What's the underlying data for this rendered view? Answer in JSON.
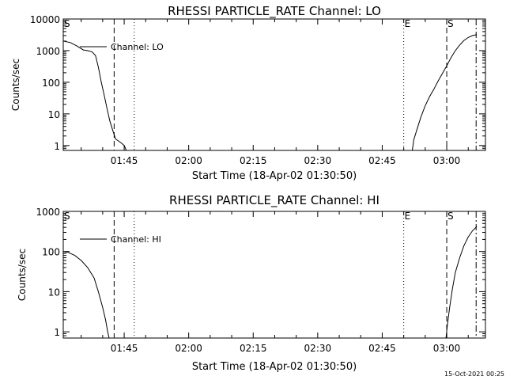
{
  "footer": {
    "timestamp": "15-Oct-2021 00:25"
  },
  "chart_data": [
    {
      "type": "line",
      "title": "RHESSI PARTICLE_RATE Channel: LO",
      "xlabel": "Start Time (18-Apr-02 01:30:50)",
      "ylabel": "Counts/sec",
      "yscale": "log",
      "xlim": [
        "01:30:50",
        "03:09:00"
      ],
      "ylim": [
        0.7,
        10000
      ],
      "x_ticks": [
        "01:45",
        "02:00",
        "02:15",
        "02:30",
        "02:45",
        "03:00"
      ],
      "y_ticks": [
        "1",
        "10",
        "100",
        "1000",
        "10000"
      ],
      "legend": {
        "position": "top-left"
      },
      "series": [
        {
          "name": "Channel: LO",
          "segments": [
            [
              [
                "01:30:50",
                2000
              ],
              [
                "01:32:30",
                1800
              ],
              [
                "01:34:00",
                1400
              ],
              [
                "01:35:30",
                1050
              ],
              [
                "01:36:30",
                1000
              ],
              [
                "01:37:30",
                920
              ],
              [
                "01:38:20",
                700
              ],
              [
                "01:39:00",
                300
              ],
              [
                "01:39:40",
                100
              ],
              [
                "01:40:20",
                40
              ],
              [
                "01:41:00",
                15
              ],
              [
                "01:41:40",
                6
              ],
              [
                "01:42:20",
                3
              ],
              [
                "01:43:00",
                1.6
              ],
              [
                "01:43:40",
                1.4
              ],
              [
                "01:44:20",
                1.2
              ],
              [
                "01:45:00",
                1.0
              ],
              [
                "01:45:30",
                0.7
              ]
            ],
            [
              [
                "02:52:00",
                0.7
              ],
              [
                "02:52:20",
                1.5
              ],
              [
                "02:53:00",
                3
              ],
              [
                "02:54:00",
                8
              ],
              [
                "02:55:00",
                18
              ],
              [
                "02:56:00",
                35
              ],
              [
                "02:57:00",
                60
              ],
              [
                "02:58:00",
                110
              ],
              [
                "02:59:00",
                190
              ],
              [
                "03:00:00",
                330
              ],
              [
                "03:01:00",
                600
              ],
              [
                "03:02:00",
                1000
              ],
              [
                "03:03:00",
                1500
              ],
              [
                "03:04:00",
                2100
              ],
              [
                "03:05:00",
                2600
              ],
              [
                "03:06:00",
                3000
              ],
              [
                "03:07:00",
                3200
              ]
            ]
          ]
        }
      ],
      "markers": [
        {
          "label": "S",
          "time": "01:30:50",
          "style": "dash-dot"
        },
        {
          "label": "",
          "time": "01:42:40",
          "style": "dashed"
        },
        {
          "label": "",
          "time": "01:47:20",
          "style": "dotted"
        },
        {
          "label": "E",
          "time": "02:50:00",
          "style": "dotted"
        },
        {
          "label": "S",
          "time": "03:00:00",
          "style": "dashed"
        },
        {
          "label": "",
          "time": "03:06:50",
          "style": "dash-dot"
        }
      ]
    },
    {
      "type": "line",
      "title": "RHESSI PARTICLE_RATE Channel: HI",
      "xlabel": "Start Time (18-Apr-02 01:30:50)",
      "ylabel": "Counts/sec",
      "yscale": "log",
      "xlim": [
        "01:30:50",
        "03:09:00"
      ],
      "ylim": [
        0.7,
        1000
      ],
      "x_ticks": [
        "01:45",
        "02:00",
        "02:15",
        "02:30",
        "02:45",
        "03:00"
      ],
      "y_ticks": [
        "1",
        "10",
        "100",
        "1000"
      ],
      "legend": {
        "position": "top-left"
      },
      "series": [
        {
          "name": "Channel: HI",
          "segments": [
            [
              [
                "01:30:50",
                100
              ],
              [
                "01:32:00",
                95
              ],
              [
                "01:33:30",
                80
              ],
              [
                "01:35:00",
                60
              ],
              [
                "01:36:30",
                40
              ],
              [
                "01:38:00",
                22
              ],
              [
                "01:39:00",
                10
              ],
              [
                "01:40:00",
                4
              ],
              [
                "01:40:40",
                2
              ],
              [
                "01:41:10",
                1.0
              ],
              [
                "01:41:30",
                0.7
              ]
            ],
            [
              [
                "02:59:50",
                0.7
              ],
              [
                "03:00:10",
                1.5
              ],
              [
                "03:00:40",
                4
              ],
              [
                "03:01:20",
                12
              ],
              [
                "03:02:00",
                30
              ],
              [
                "03:03:00",
                70
              ],
              [
                "03:04:00",
                140
              ],
              [
                "03:05:00",
                230
              ],
              [
                "03:06:00",
                330
              ],
              [
                "03:07:00",
                420
              ]
            ]
          ]
        }
      ],
      "markers": [
        {
          "label": "S",
          "time": "01:30:50",
          "style": "dash-dot"
        },
        {
          "label": "",
          "time": "01:42:40",
          "style": "dashed"
        },
        {
          "label": "",
          "time": "01:47:20",
          "style": "dotted"
        },
        {
          "label": "E",
          "time": "02:50:00",
          "style": "dotted"
        },
        {
          "label": "S",
          "time": "03:00:00",
          "style": "dashed"
        },
        {
          "label": "",
          "time": "03:06:50",
          "style": "dash-dot"
        }
      ]
    }
  ]
}
